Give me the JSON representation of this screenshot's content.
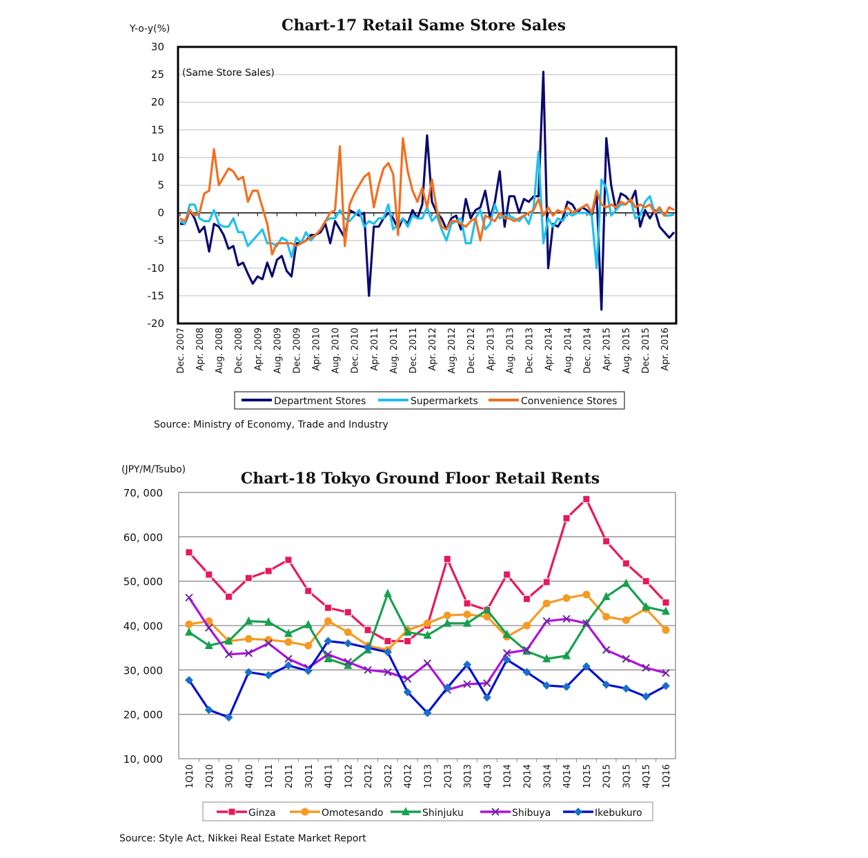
{
  "chart_data": [
    {
      "type": "line",
      "title": "Chart-17 Retail Same Store Sales",
      "ylabel": "Y-o-y(%)",
      "annotation": "(Same Store Sales)",
      "source": "Source: Ministry of Economy, Trade and Industry",
      "ylim": [
        -20,
        30
      ],
      "yticks": [
        "30",
        "25",
        "20",
        "15",
        "10",
        "5",
        "0",
        "-5",
        "-10",
        "-15",
        "-20"
      ],
      "ytick_values": [
        30,
        25,
        20,
        15,
        10,
        5,
        0,
        -5,
        -10,
        -15,
        -20
      ],
      "x_start": "Dec. 2007",
      "x_end": "Jun. 2016",
      "x_frequency": "monthly",
      "xticks": [
        "Dec. 2007",
        "Apr. 2008",
        "Aug. 2008",
        "Dec. 2008",
        "Apr. 2009",
        "Aug. 2009",
        "Dec. 2009",
        "Apr. 2010",
        "Aug. 2010",
        "Dec. 2010",
        "Apr. 2011",
        "Aug. 2011",
        "Dec. 2011",
        "Apr. 2012",
        "Aug. 2012",
        "Dec. 2012",
        "Apr. 2013",
        "Aug. 2013",
        "Dec. 2013",
        "Apr. 2014",
        "Aug. 2014",
        "Dec. 2014",
        "Apr. 2015",
        "Aug. 2015",
        "Dec. 2015",
        "Apr. 2016"
      ],
      "grid": true,
      "legend": "bottom",
      "series": [
        {
          "name": "Department Stores",
          "color": "#0a0a6e",
          "values": [
            -2,
            -2,
            0.5,
            -1,
            -3.5,
            -2.5,
            -7,
            -2,
            -2.5,
            -4,
            -6.5,
            -6,
            -9.5,
            -9,
            -11,
            -12.8,
            -11.5,
            -12,
            -9,
            -11.5,
            -8.5,
            -7.8,
            -10.5,
            -11.5,
            -5.5,
            -5.5,
            -5,
            -4,
            -4,
            -3.5,
            -2,
            -5.5,
            -1.5,
            -3,
            -4.5,
            0.5,
            0,
            -0.5,
            0,
            -15,
            -2.5,
            -2.5,
            -1,
            0,
            -1,
            -3,
            -1,
            -2,
            0.5,
            -1,
            1.5,
            14,
            2,
            0,
            -1,
            -3,
            -1,
            -0.5,
            -3,
            2.5,
            -1,
            0.5,
            1,
            4,
            -1,
            2,
            7.5,
            -2.5,
            3,
            3,
            0,
            2.5,
            2,
            3,
            3,
            25.5,
            -10,
            -2,
            -2.5,
            -1,
            2,
            1.5,
            0,
            1,
            0.5,
            -0.5,
            3.5,
            -17.5,
            13.5,
            5,
            0.5,
            3.5,
            3,
            2,
            4,
            -2.5,
            0.5,
            -1,
            0.5,
            -2.5,
            -3.5,
            -4.5,
            -3.5
          ]
        },
        {
          "name": "Supermarkets",
          "color": "#1ec0f0",
          "values": [
            -1.5,
            -2,
            1.5,
            1.5,
            -1,
            -1.5,
            -1.5,
            0.5,
            -2,
            -2.5,
            -2.5,
            -1,
            -3.5,
            -3.5,
            -6,
            -5,
            -4,
            -3,
            -5.5,
            -5.5,
            -6,
            -4.5,
            -5,
            -8,
            -4.5,
            -5.5,
            -3.5,
            -5,
            -4,
            -3,
            -1.5,
            -1,
            -1,
            0.5,
            -1,
            -1.5,
            -0.5,
            0.5,
            -2.5,
            -1.5,
            -2,
            -1,
            -1,
            1.5,
            -3,
            -2,
            -1,
            -2.5,
            -0.5,
            -1,
            -1,
            1,
            -1.5,
            -0.5,
            -3,
            -5,
            -2,
            -1.5,
            -1,
            -5.5,
            -5.5,
            -1,
            0.5,
            -3,
            -2,
            1.5,
            -1,
            -0.5,
            -0.5,
            -1,
            -1.5,
            -0.5,
            -2,
            1,
            11,
            -5.5,
            -1,
            -2.5,
            -1,
            -1.5,
            0,
            -0.5,
            0,
            0,
            0,
            -0.5,
            -10,
            6,
            4.5,
            -0.5,
            0.5,
            1.5,
            1.5,
            2.5,
            -1,
            -0.5,
            2,
            3,
            0,
            0.5,
            -0.5,
            -0.5,
            -0.3
          ]
        },
        {
          "name": "Convenience Stores",
          "color": "#f07020",
          "values": [
            -1,
            -1.5,
            0.5,
            -0.5,
            0,
            3.5,
            4,
            11.5,
            5,
            6.5,
            8,
            7.5,
            6,
            6.5,
            2,
            4,
            4,
            1,
            -2,
            -7.5,
            -5.5,
            -5.5,
            -5.5,
            -5.5,
            -6,
            -5.5,
            -5,
            -4.5,
            -4,
            -3,
            -1.5,
            0,
            0.5,
            12,
            -6,
            1.5,
            3.5,
            5,
            6.5,
            7.2,
            1,
            5,
            8,
            9,
            7,
            -4,
            13.5,
            7.5,
            4,
            2,
            4.5,
            1,
            6,
            0.5,
            -2.5,
            -3,
            -1.5,
            -1.5,
            -2,
            -2.5,
            -1.5,
            -1,
            -5,
            -0.5,
            -1,
            -1.5,
            0,
            -1,
            -1,
            -1.5,
            -1,
            -0.5,
            0,
            0.5,
            2.5,
            -0.5,
            1,
            -0.5,
            0.5,
            0,
            1,
            0,
            0.5,
            1,
            1.5,
            0,
            4,
            1.5,
            1,
            1.5,
            1,
            2,
            1.5,
            2.5,
            1,
            1.5,
            1,
            1.5,
            0,
            1,
            -0.5,
            1,
            0.5
          ]
        }
      ]
    },
    {
      "type": "line",
      "title": "Chart-18 Tokyo Ground Floor Retail Rents",
      "ylabel": "(JPY/M/Tsubo)",
      "source": "Source: Style Act, Nikkei Real Estate Market Report",
      "ylim": [
        10000,
        70000
      ],
      "yticks": [
        "70, 000",
        "60, 000",
        "50, 000",
        "40, 000",
        "30, 000",
        "20, 000",
        "10, 000"
      ],
      "ytick_values": [
        70000,
        60000,
        50000,
        40000,
        30000,
        20000,
        10000
      ],
      "categories": [
        "1Q10",
        "2Q10",
        "3Q10",
        "4Q10",
        "1Q11",
        "2Q11",
        "3Q11",
        "4Q11",
        "1Q12",
        "2Q12",
        "3Q12",
        "4Q12",
        "1Q13",
        "2Q13",
        "3Q13",
        "4Q13",
        "1Q14",
        "2Q14",
        "3Q14",
        "4Q14",
        "1Q15",
        "2Q15",
        "3Q15",
        "4Q15",
        "1Q16"
      ],
      "grid": true,
      "legend": "bottom",
      "series": [
        {
          "name": "Ginza",
          "color": "#e8185a",
          "marker": "square",
          "values": [
            56500,
            51500,
            46500,
            50700,
            52300,
            54800,
            47800,
            44000,
            43000,
            39000,
            36500,
            36500,
            40000,
            55000,
            45000,
            43500,
            51500,
            46000,
            49800,
            64200,
            68500,
            59000,
            54000,
            50000,
            45200
          ]
        },
        {
          "name": "Omotesando",
          "color": "#f59a23",
          "marker": "circle",
          "values": [
            40300,
            41000,
            36500,
            37000,
            36800,
            36300,
            35500,
            41000,
            38500,
            35500,
            34500,
            39000,
            40500,
            42300,
            42500,
            42000,
            37500,
            40000,
            45000,
            46200,
            47000,
            42000,
            41200,
            43800,
            39000
          ]
        },
        {
          "name": "Shinjuku",
          "color": "#16a050",
          "marker": "triangle",
          "values": [
            38500,
            35500,
            36500,
            41000,
            40800,
            38200,
            40200,
            32500,
            31000,
            34500,
            47200,
            38500,
            37800,
            40500,
            40500,
            43500,
            38000,
            34200,
            32500,
            33200,
            40500,
            46500,
            49500,
            44200,
            43200
          ]
        },
        {
          "name": "Shibuya",
          "color": "#b010e0",
          "marker": "x",
          "values": [
            46300,
            39500,
            33500,
            33800,
            36000,
            32500,
            30500,
            33500,
            31800,
            30000,
            29500,
            28000,
            31500,
            25500,
            26800,
            27000,
            33800,
            34500,
            41000,
            41500,
            40500,
            34500,
            32500,
            30500,
            29300
          ]
        },
        {
          "name": "Ikebukuro",
          "color": "#0010d0",
          "marker": "diamond",
          "values": [
            27700,
            21000,
            19300,
            29500,
            28800,
            31000,
            29800,
            36500,
            36000,
            35000,
            34000,
            25000,
            20300,
            26000,
            31200,
            23800,
            32300,
            29500,
            26500,
            26200,
            30800,
            26700,
            25800,
            24000,
            26400
          ]
        }
      ]
    }
  ]
}
